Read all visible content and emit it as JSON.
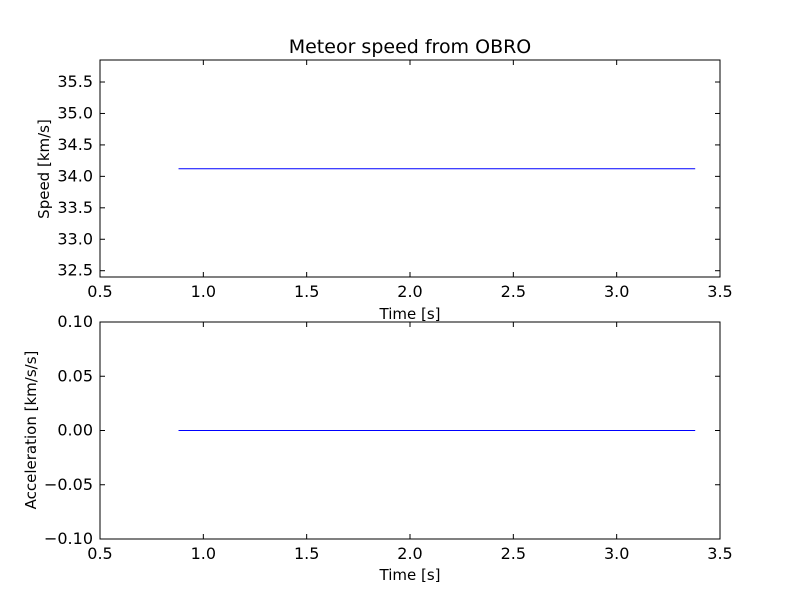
{
  "chart_data": [
    {
      "type": "line",
      "title": "Meteor speed from  OBRO",
      "xlabel": "Time [s]",
      "ylabel": "Speed [km/s]",
      "xlim": [
        0.5,
        3.5
      ],
      "ylim": [
        32.4,
        35.85
      ],
      "xticks": [
        0.5,
        1.0,
        1.5,
        2.0,
        2.5,
        3.0,
        3.5
      ],
      "xtick_labels": [
        "0.5",
        "1.0",
        "1.5",
        "2.0",
        "2.5",
        "3.0",
        "3.5"
      ],
      "yticks": [
        32.5,
        33.0,
        33.5,
        34.0,
        34.5,
        35.0,
        35.5
      ],
      "ytick_labels": [
        "32.5",
        "33.0",
        "33.5",
        "34.0",
        "34.5",
        "35.0",
        "35.5"
      ],
      "grid": false,
      "series": [
        {
          "color": "#0000ff",
          "x": [
            0.88,
            3.38
          ],
          "y": [
            34.12,
            34.12
          ]
        }
      ]
    },
    {
      "type": "line",
      "title": "",
      "xlabel": "Time [s]",
      "ylabel": "Acceleration [km/s/s]",
      "xlim": [
        0.5,
        3.5
      ],
      "ylim": [
        -0.1,
        0.1
      ],
      "xticks": [
        0.5,
        1.0,
        1.5,
        2.0,
        2.5,
        3.0,
        3.5
      ],
      "xtick_labels": [
        "0.5",
        "1.0",
        "1.5",
        "2.0",
        "2.5",
        "3.0",
        "3.5"
      ],
      "yticks": [
        -0.1,
        -0.05,
        0.0,
        0.05,
        0.1
      ],
      "ytick_labels": [
        "−0.10",
        "−0.05",
        "0.00",
        "0.05",
        "0.10"
      ],
      "grid": false,
      "series": [
        {
          "color": "#0000ff",
          "x": [
            0.88,
            3.38
          ],
          "y": [
            0.0,
            0.0
          ]
        }
      ]
    }
  ]
}
